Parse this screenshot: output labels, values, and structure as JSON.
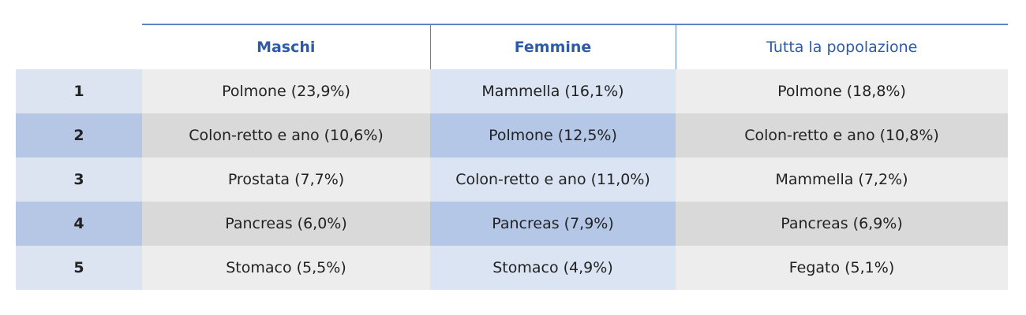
{
  "table": {
    "header": [
      "Maschi",
      "Femmine",
      "Tutta la popolazione"
    ],
    "rows": [
      {
        "rank": "1",
        "cells": [
          "Polmone (23,9%)",
          "Mammella (16,1%)",
          "Polmone  (18,8%)"
        ]
      },
      {
        "rank": "2",
        "cells": [
          "Colon-retto e ano  (10,6%)",
          "Polmone (12,5%)",
          "Colon-retto e ano (10,8%)"
        ]
      },
      {
        "rank": "3",
        "cells": [
          "Prostata (7,7%)",
          "Colon-retto e ano (11,0%)",
          "Mammella (7,2%)"
        ]
      },
      {
        "rank": "4",
        "cells": [
          "Pancreas (6,0%)",
          "Pancreas (7,9%)",
          "Pancreas (6,9%)"
        ]
      },
      {
        "rank": "5",
        "cells": [
          "Stomaco (5,5%)",
          "Stomaco (4,9%)",
          "Fegato (5,1%)"
        ]
      }
    ]
  }
}
